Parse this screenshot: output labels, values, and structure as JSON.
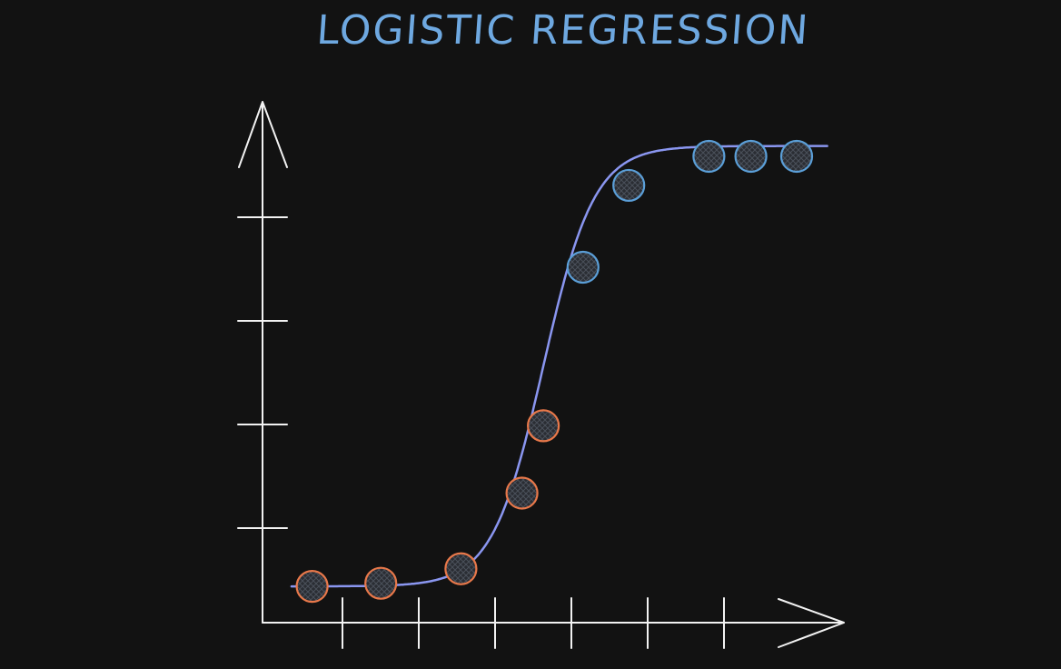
{
  "title": "LOGISTIC REGRESSION",
  "colors": {
    "background": "#121212",
    "axis": "#f2f2f2",
    "curve": "#8a96f0",
    "title": "#6ea8e0",
    "class_negative": "#e8784a",
    "class_positive": "#5b9fd8"
  },
  "chart_data": {
    "type": "scatter",
    "title": "LOGISTIC REGRESSION",
    "xlabel": "",
    "ylabel": "",
    "x_ticks": 6,
    "y_ticks": 4,
    "xlim": [
      0,
      7.5
    ],
    "ylim": [
      0,
      5.1
    ],
    "curve": {
      "type": "sigmoid",
      "lower": 0.35,
      "upper": 4.6,
      "midpoint": 3.68,
      "steepness": 3.0
    },
    "series": [
      {
        "class": "negative",
        "color": "#e8784a",
        "points": [
          [
            0.65,
            0.35
          ],
          [
            1.55,
            0.38
          ],
          [
            2.6,
            0.52
          ],
          [
            3.4,
            1.25
          ],
          [
            3.68,
            1.9
          ]
        ]
      },
      {
        "class": "positive",
        "color": "#5b9fd8",
        "points": [
          [
            4.2,
            3.43
          ],
          [
            4.8,
            4.22
          ],
          [
            5.85,
            4.5
          ],
          [
            6.4,
            4.5
          ],
          [
            7.0,
            4.5
          ]
        ]
      }
    ]
  }
}
